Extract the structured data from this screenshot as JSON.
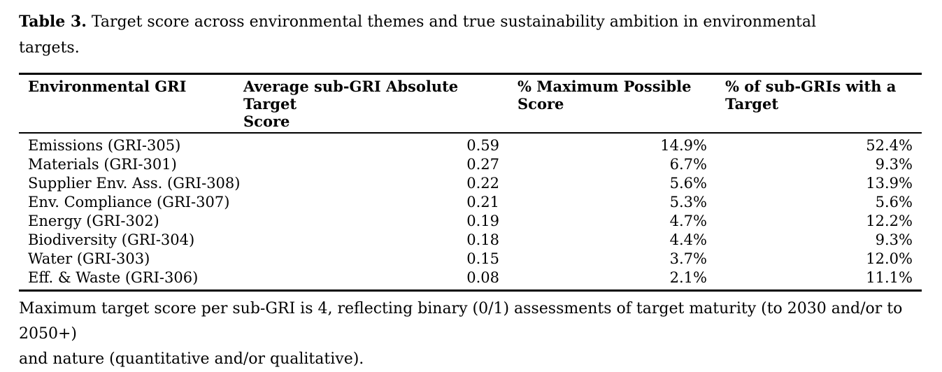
{
  "caption": {
    "label": "Table 3.",
    "line1": "Target score across environmental themes and true sustainability ambition in environmental",
    "line2": "targets."
  },
  "table": {
    "columns": [
      {
        "label": "Environmental GRI",
        "line1": "Environmental GRI",
        "line2": ""
      },
      {
        "label": "Average sub-GRI Absolute Target Score",
        "line1": "Average sub-GRI Absolute Target",
        "line2": "Score"
      },
      {
        "label": "% Maximum Possible Score",
        "line1": "% Maximum Possible",
        "line2": "Score"
      },
      {
        "label": "% of sub-GRIs with a Target",
        "line1": "% of sub-GRIs with a",
        "line2": "Target"
      }
    ],
    "rows": [
      {
        "gri": "Emissions (GRI-305)",
        "avg": "0.59",
        "max": "14.9%",
        "pct": "52.4%"
      },
      {
        "gri": "Materials (GRI-301)",
        "avg": "0.27",
        "max": "6.7%",
        "pct": "9.3%"
      },
      {
        "gri": "Supplier Env. Ass. (GRI-308)",
        "avg": "0.22",
        "max": "5.6%",
        "pct": "13.9%"
      },
      {
        "gri": "Env. Compliance (GRI-307)",
        "avg": "0.21",
        "max": "5.3%",
        "pct": "5.6%"
      },
      {
        "gri": "Energy (GRI-302)",
        "avg": "0.19",
        "max": "4.7%",
        "pct": "12.2%"
      },
      {
        "gri": "Biodiversity (GRI-304)",
        "avg": "0.18",
        "max": "4.4%",
        "pct": "9.3%"
      },
      {
        "gri": "Water (GRI-303)",
        "avg": "0.15",
        "max": "3.7%",
        "pct": "12.0%"
      },
      {
        "gri": "Eff. & Waste (GRI-306)",
        "avg": "0.08",
        "max": "2.1%",
        "pct": "11.1%"
      }
    ]
  },
  "footnote": {
    "line1": "Maximum target score per sub-GRI is 4, reflecting binary (0/1) assessments of target maturity (to 2030 and/or to 2050+)",
    "line2": "and nature (quantitative and/or qualitative)."
  },
  "colors": {
    "text": "#000000",
    "background": "#ffffff",
    "rule": "#000000"
  }
}
